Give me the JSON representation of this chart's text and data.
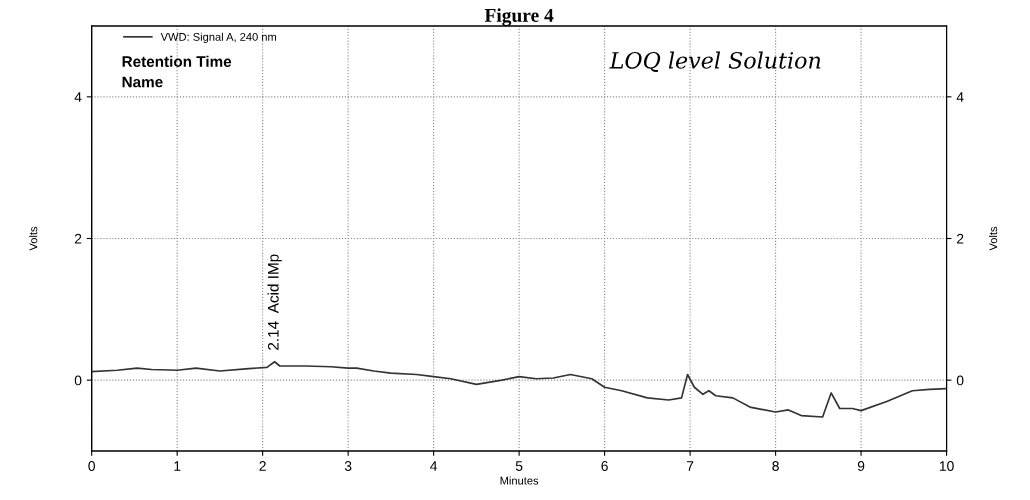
{
  "chart_data": {
    "type": "line",
    "title": "Figure 4",
    "xlabel": "Minutes",
    "ylabel": "Volts",
    "y2label": "Volts",
    "x": [
      0,
      0.3,
      0.53,
      0.7,
      1.0,
      1.22,
      1.5,
      1.8,
      2.05,
      2.14,
      2.2,
      2.5,
      2.8,
      3.0,
      3.1,
      3.3,
      3.5,
      3.8,
      4.0,
      4.2,
      4.5,
      4.8,
      5.0,
      5.2,
      5.4,
      5.6,
      5.85,
      6.0,
      6.2,
      6.5,
      6.75,
      6.9,
      6.97,
      7.05,
      7.15,
      7.22,
      7.3,
      7.5,
      7.7,
      8.0,
      8.15,
      8.3,
      8.55,
      8.65,
      8.75,
      8.9,
      9.0,
      9.3,
      9.6,
      9.8,
      10.0
    ],
    "series": [
      {
        "name": "VWD: Signal A, 240 nm",
        "color": "#333333",
        "values": [
          0.12,
          0.14,
          0.17,
          0.15,
          0.14,
          0.17,
          0.13,
          0.16,
          0.18,
          0.26,
          0.2,
          0.2,
          0.19,
          0.17,
          0.17,
          0.13,
          0.1,
          0.08,
          0.05,
          0.02,
          -0.06,
          0.0,
          0.05,
          0.02,
          0.03,
          0.08,
          0.02,
          -0.1,
          -0.15,
          -0.25,
          -0.28,
          -0.25,
          0.08,
          -0.1,
          -0.2,
          -0.15,
          -0.22,
          -0.25,
          -0.38,
          -0.45,
          -0.42,
          -0.5,
          -0.52,
          -0.18,
          -0.4,
          -0.4,
          -0.43,
          -0.3,
          -0.15,
          -0.13,
          -0.12
        ]
      }
    ],
    "xlim": [
      0,
      10
    ],
    "xticks": [
      0,
      1,
      2,
      3,
      4,
      5,
      6,
      7,
      8,
      9,
      10
    ],
    "ylim": [
      -1,
      5
    ],
    "yticks": [
      0,
      2,
      4
    ],
    "y2lim": [
      -1,
      5
    ],
    "y2ticks": [
      0,
      2,
      4
    ],
    "grid": true,
    "legend": "top left",
    "line_style": "solid",
    "annotations": [
      {
        "text": "2.14  Acid IMp",
        "x": 2.14,
        "y": 0.26
      },
      "Retention Time",
      "Name",
      "LOQ level Solution"
    ]
  }
}
